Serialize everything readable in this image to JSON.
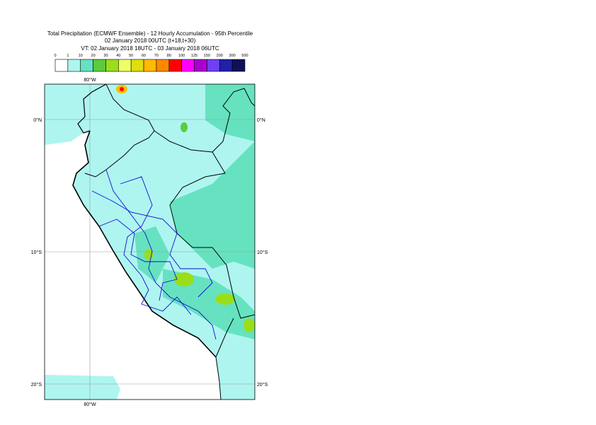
{
  "title": {
    "line1": "Total Precipitation (ECMWF Ensemble) - 12 Hourly Accumulation - 95th Percentile",
    "line2": "02 January 2018 00UTC (t+18,t+30)",
    "line3": "VT: 02 January 2018 18UTC - 03 January 2018 06UTC"
  },
  "legend": {
    "labels": [
      0,
      1,
      10,
      20,
      30,
      40,
      50,
      60,
      70,
      80,
      100,
      125,
      150,
      200,
      300,
      500
    ],
    "colors": [
      "#ffffff",
      "#aef5f0",
      "#66e2c0",
      "#5ccc3c",
      "#9ade1a",
      "#eeff66",
      "#dede10",
      "#ffbb00",
      "#ff8800",
      "#ff0000",
      "#ff00ff",
      "#a800d0",
      "#7040f0",
      "#2020a8",
      "#101058"
    ]
  },
  "map": {
    "top_lon": "80°W",
    "bottom_lon": "80°W",
    "left_lats": [
      "0°N",
      "10°S",
      "20°S"
    ],
    "right_lats": [
      "0°N",
      "10°S",
      "20°S"
    ]
  }
}
